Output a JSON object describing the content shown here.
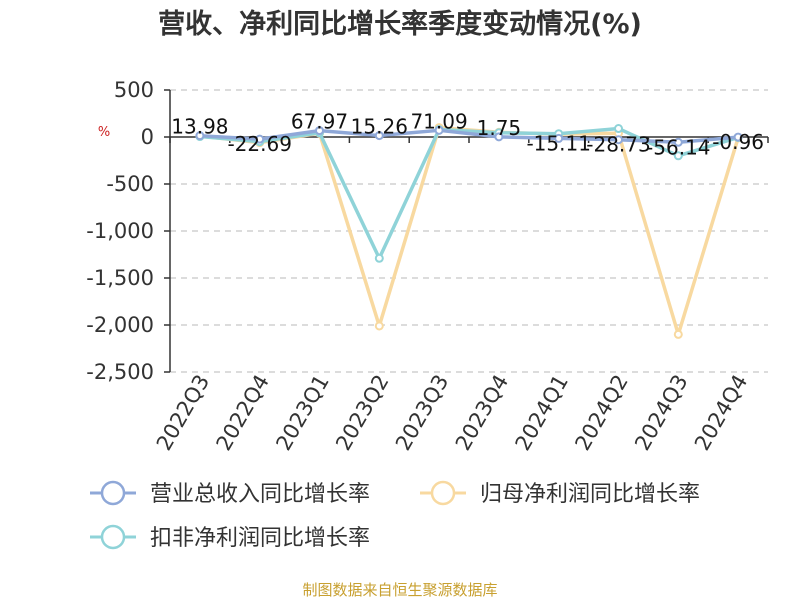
{
  "chart_data": {
    "type": "line",
    "title": "营收、净利同比增长率季度变动情况(%)",
    "ylabel": "%",
    "ylim": [
      -2500,
      500
    ],
    "yticks": [
      500,
      0,
      -500,
      -1000,
      -1500,
      -2000,
      -2500
    ],
    "ytick_labels": [
      "500",
      "0",
      "-500",
      "-1,000",
      "-1,500",
      "-2,000",
      "-2,500"
    ],
    "categories": [
      "2022Q3",
      "2022Q4",
      "2023Q1",
      "2023Q2",
      "2023Q3",
      "2023Q4",
      "2024Q1",
      "2024Q2",
      "2024Q3",
      "2024Q4"
    ],
    "grid": true,
    "legend_position": "bottom",
    "series": [
      {
        "name": "营业总收入同比增长率",
        "color": "#8fa8d8",
        "values": [
          13.98,
          -22.69,
          67.97,
          15.26,
          71.09,
          1.75,
          -15.11,
          -28.73,
          -56.14,
          -0.96
        ]
      },
      {
        "name": "归母净利润同比增长率",
        "color": "#f8d9a0",
        "values": [
          10,
          -60,
          40,
          -2010,
          100,
          50,
          30,
          40,
          -2100,
          -10
        ]
      },
      {
        "name": "扣非净利润同比增长率",
        "color": "#8fd3d8",
        "values": [
          5,
          -50,
          45,
          -1290,
          80,
          45,
          35,
          90,
          -200,
          -5
        ]
      }
    ],
    "data_labels": [
      "13.98",
      "-22.69",
      "67.97",
      "15.26",
      "71.09",
      "1.75",
      "-15.11",
      "-28.73",
      "-56.14",
      "-0.96"
    ]
  },
  "source": "制图数据来自恒生聚源数据库"
}
